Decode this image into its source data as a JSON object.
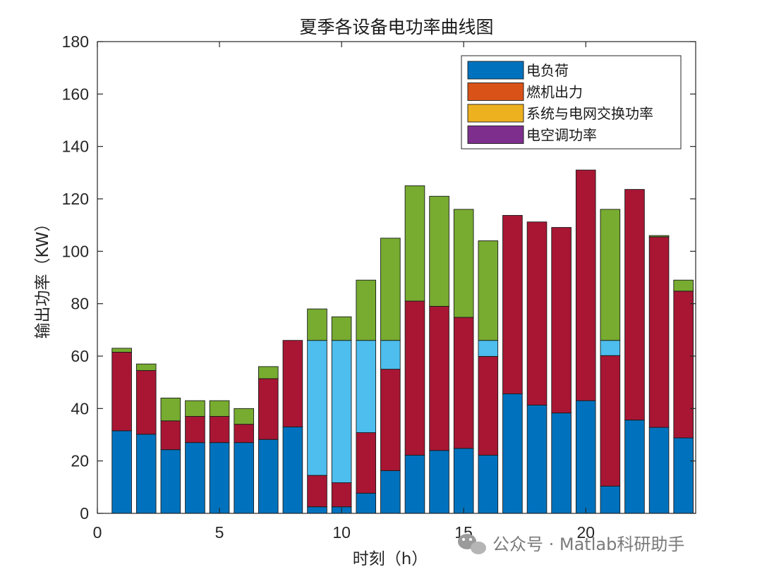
{
  "chart_data": {
    "type": "bar",
    "stacked": true,
    "title": "夏季各设备电功率曲线图",
    "xlabel": "时刻（h）",
    "ylabel": "输出功率（KW）",
    "xlim": [
      0,
      24.5
    ],
    "ylim": [
      0,
      180
    ],
    "xticks": [
      0,
      5,
      10,
      15,
      20
    ],
    "yticks": [
      0,
      20,
      40,
      60,
      80,
      100,
      120,
      140,
      160,
      180
    ],
    "x": [
      1,
      2,
      3,
      4,
      5,
      6,
      7,
      8,
      9,
      10,
      11,
      12,
      13,
      14,
      15,
      16,
      17,
      18,
      19,
      20,
      21,
      22,
      23,
      24
    ],
    "series": [
      {
        "name": "电负荷",
        "color": "#0072BD",
        "values": [
          31.5,
          30.2,
          24.3,
          27,
          27,
          27,
          28.2,
          33,
          2.5,
          2.5,
          7.7,
          16.3,
          22.2,
          24,
          24.8,
          22.2,
          45.6,
          41.3,
          38.3,
          43,
          10.4,
          35.6,
          32.8,
          28.8
        ]
      },
      {
        "name": "燃机出力",
        "color": "#A81634",
        "values": [
          30,
          24.3,
          11,
          10,
          10,
          7,
          23.2,
          33,
          12,
          9.2,
          23.1,
          38.7,
          58.8,
          55,
          50,
          37.7,
          68.1,
          69.9,
          70.8,
          88,
          49.8,
          88,
          72.7,
          56
        ]
      },
      {
        "name": "系统与电网交换功率",
        "color": "#4DBEEE",
        "values": [
          0,
          0,
          0,
          0,
          0,
          0,
          0,
          0,
          51.5,
          54.3,
          35.2,
          11,
          0,
          0,
          0,
          6.1,
          0,
          0,
          0,
          0,
          5.8,
          0,
          0,
          0
        ]
      },
      {
        "name": "电空调功率",
        "color": "#77AC30",
        "values": [
          1.5,
          2.5,
          8.7,
          6,
          6,
          6,
          4.6,
          0,
          12,
          9,
          23,
          39,
          44,
          42,
          41.2,
          38,
          0,
          0,
          0,
          0,
          50,
          0,
          0.5,
          4.2
        ]
      }
    ],
    "legend_colors": [
      "#0072BD",
      "#D95319",
      "#EDB120",
      "#7E2F8E"
    ],
    "legend": "top-right",
    "grid": false
  },
  "watermark": "公众号 · Matlab科研助手"
}
